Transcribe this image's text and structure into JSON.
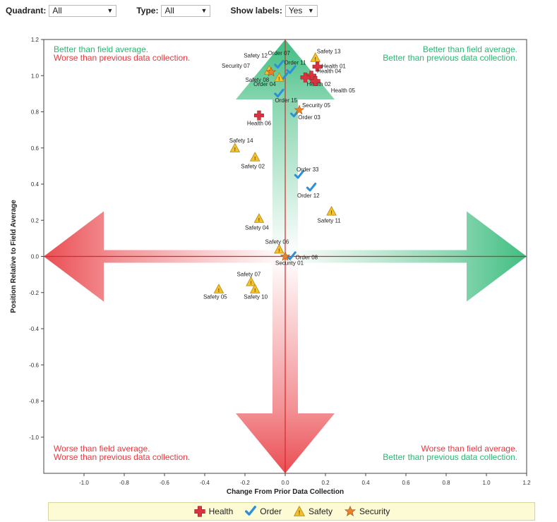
{
  "filters": {
    "quadrant": {
      "label": "Quadrant:",
      "value": "All"
    },
    "type": {
      "label": "Type:",
      "value": "All"
    },
    "labels": {
      "label": "Show labels:",
      "value": "Yes"
    }
  },
  "chart_data": {
    "type": "scatter",
    "xlabel": "Change From Prior Data Collection",
    "ylabel": "Position Relative to Field Average",
    "xlim": [
      -1.2,
      1.2
    ],
    "ylim": [
      -1.2,
      1.2
    ],
    "x_ticks": [
      "-1.0",
      "-0.8",
      "-0.6",
      "-0.4",
      "-0.2",
      "0.0",
      "0.2",
      "0.4",
      "0.6",
      "0.8",
      "1.0",
      "1.2"
    ],
    "x_tick_values": [
      -1.0,
      -0.8,
      -0.6,
      -0.4,
      -0.2,
      0.0,
      0.2,
      0.4,
      0.6,
      0.8,
      1.0,
      1.2
    ],
    "y_ticks": [
      "1.2",
      "1.0",
      "0.8",
      "0.6",
      "0.4",
      "0.2",
      "0.0",
      "-0.2",
      "-0.4",
      "-0.6",
      "-0.8",
      "-1.0"
    ],
    "y_tick_values": [
      1.2,
      1.0,
      0.8,
      0.6,
      0.4,
      0.2,
      0.0,
      -0.2,
      -0.4,
      -0.6,
      -0.8,
      -1.0
    ],
    "quadrant_labels": {
      "top_left": {
        "line1": "Better than field average.",
        "line2": "Worse than previous data collection."
      },
      "top_right": {
        "line1": "Better than field average.",
        "line2": "Better than previous data collection."
      },
      "bottom_left": {
        "line1": "Worse than field average.",
        "line2": "Worse than previous data collection."
      },
      "bottom_right": {
        "line1": "Worse than field average.",
        "line2": "Better than previous data collection."
      }
    },
    "colors": {
      "green": "#2bb673",
      "red": "#e8393f",
      "health": "#d9333f",
      "order": "#2d8fd8",
      "safety": "#f2c12e",
      "security": "#e8812a"
    },
    "legend": [
      {
        "name": "Health",
        "type": "health"
      },
      {
        "name": "Order",
        "type": "order"
      },
      {
        "name": "Safety",
        "type": "safety"
      },
      {
        "name": "Security",
        "type": "security"
      }
    ],
    "points": [
      {
        "label": "Health 06",
        "type": "health",
        "x": -0.13,
        "y": 0.78
      },
      {
        "label": "Order 15",
        "type": "order",
        "x": -0.03,
        "y": 0.9
      },
      {
        "label": "Order 03",
        "type": "order",
        "x": 0.05,
        "y": 0.79
      },
      {
        "label": "Security 05",
        "type": "security",
        "x": 0.07,
        "y": 0.81
      },
      {
        "label": "Safety 14",
        "type": "safety",
        "x": -0.25,
        "y": 0.6
      },
      {
        "label": "Safety 02",
        "type": "safety",
        "x": -0.15,
        "y": 0.55
      },
      {
        "label": "Order 33",
        "type": "order",
        "x": 0.07,
        "y": 0.45
      },
      {
        "label": "Order 12",
        "type": "order",
        "x": 0.13,
        "y": 0.38
      },
      {
        "label": "Safety 11",
        "type": "safety",
        "x": 0.23,
        "y": 0.25
      },
      {
        "label": "Safety 04",
        "type": "safety",
        "x": -0.13,
        "y": 0.21
      },
      {
        "label": "Safety 06",
        "type": "safety",
        "x": -0.03,
        "y": 0.04
      },
      {
        "label": "Order 08",
        "type": "order",
        "x": 0.03,
        "y": 0.0
      },
      {
        "label": "Security 01",
        "type": "security",
        "x": 0.0,
        "y": 0.0
      },
      {
        "label": "Safety 07",
        "type": "safety",
        "x": -0.17,
        "y": -0.14
      },
      {
        "label": "Safety 10",
        "type": "safety",
        "x": -0.15,
        "y": -0.18
      },
      {
        "label": "Safety 05",
        "type": "safety",
        "x": -0.33,
        "y": -0.18
      },
      {
        "label": "Order 04",
        "type": "order",
        "x": -0.01,
        "y": 0.99
      },
      {
        "label": "Order 11",
        "type": "order",
        "x": 0.03,
        "y": 1.03
      },
      {
        "label": "Order 07",
        "type": "order",
        "x": -0.03,
        "y": 1.06
      },
      {
        "label": "Safety 12",
        "type": "safety",
        "x": -0.08,
        "y": 1.03
      },
      {
        "label": "Safety 08",
        "type": "safety",
        "x": -0.03,
        "y": 0.99
      },
      {
        "label": "Security 07",
        "type": "security",
        "x": -0.07,
        "y": 1.02
      },
      {
        "label": "Safety 13",
        "type": "safety",
        "x": 0.15,
        "y": 1.1
      },
      {
        "label": "Health 01",
        "type": "health",
        "x": 0.16,
        "y": 1.05
      },
      {
        "label": "Health 04",
        "type": "health",
        "x": 0.13,
        "y": 1.0
      },
      {
        "label": "Health 02",
        "type": "health",
        "x": 0.1,
        "y": 0.99
      },
      {
        "label": "Health 05",
        "type": "health",
        "x": 0.15,
        "y": 0.97
      }
    ]
  }
}
